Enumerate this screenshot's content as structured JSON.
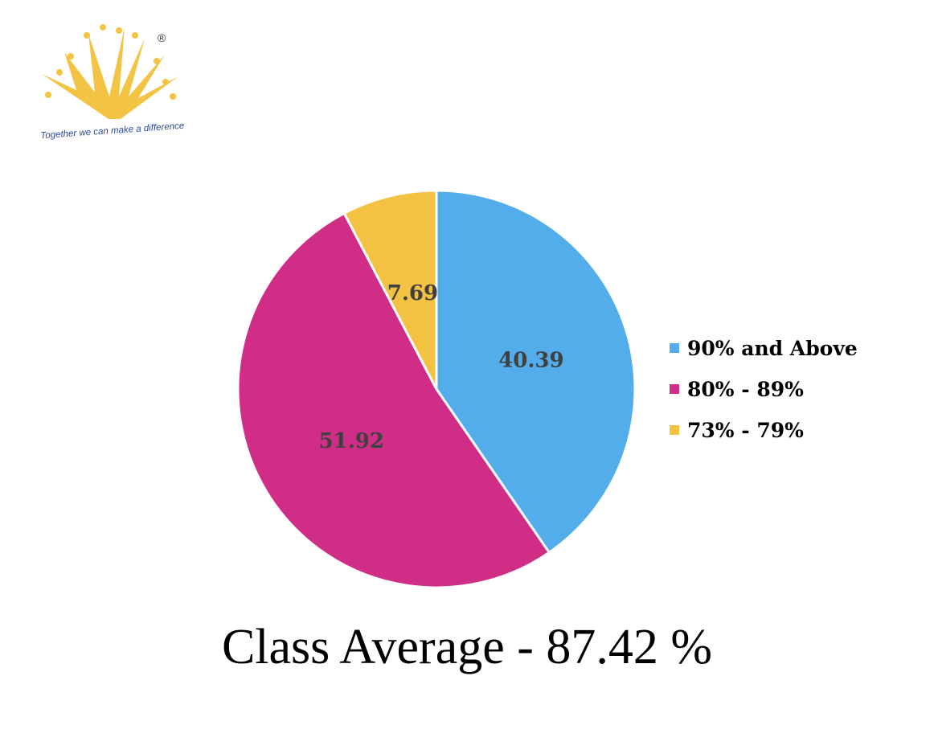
{
  "logo": {
    "tagline": "Together we can make a difference",
    "registered_mark": "®",
    "color": "#f3c343"
  },
  "chart_data": {
    "type": "pie",
    "categories": [
      "90% and Above",
      "80% - 89%",
      "73% - 79%"
    ],
    "values": [
      40.39,
      51.92,
      7.69
    ],
    "colors": [
      "#52adea",
      "#d02d87",
      "#f4c243"
    ],
    "data_labels": [
      "40.39",
      "51.92",
      "7.69"
    ],
    "start_angle_deg": 0,
    "direction": "clockwise",
    "legend_position": "right",
    "title": ""
  },
  "caption": "Class Average - 87.42 %"
}
